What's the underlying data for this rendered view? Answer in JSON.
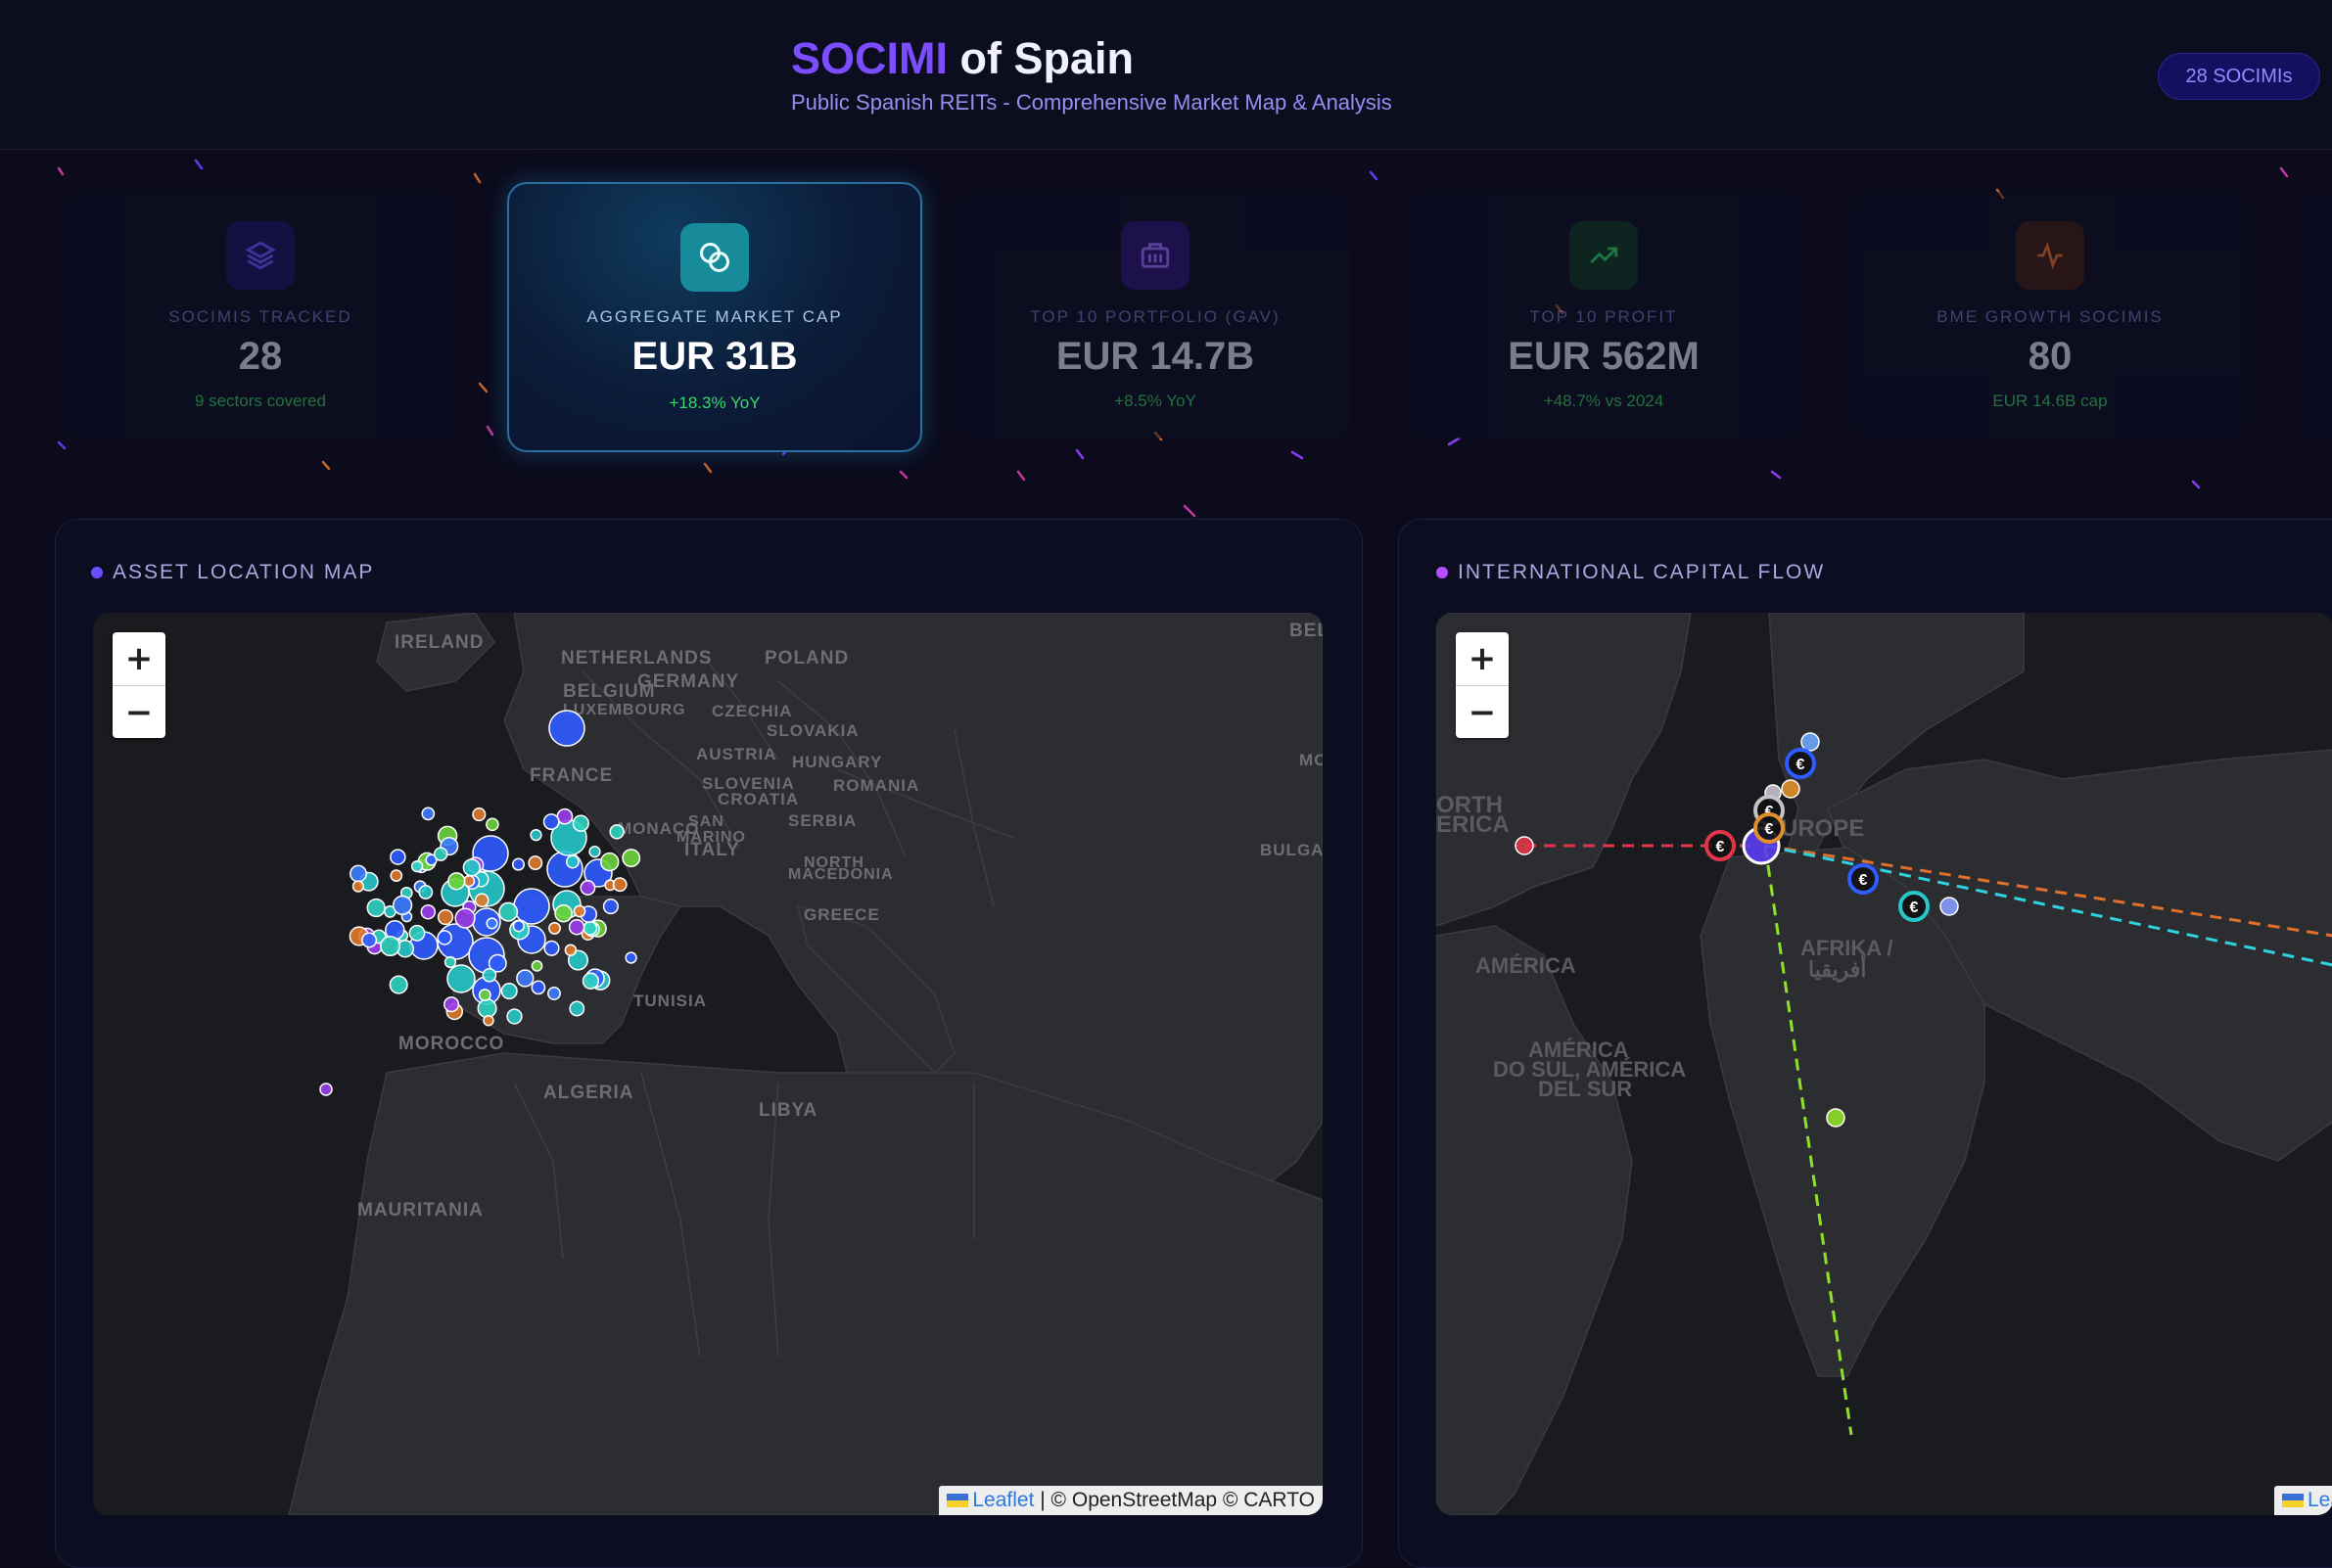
{
  "header": {
    "title_accent": "SOCIMI",
    "title_rest": "of Spain",
    "subtitle": "Public Spanish REITs - Comprehensive Market Map & Analysis",
    "badge": "28 SOCIMIs"
  },
  "kpis": [
    {
      "label": "SOCIMIS TRACKED",
      "value": "28",
      "delta": "9 sectors covered",
      "icon": "layers-icon",
      "color": "#5a3df0"
    },
    {
      "label": "AGGREGATE MARKET CAP",
      "value": "EUR 31B",
      "delta": "+18.3% YoY",
      "icon": "coins-icon",
      "color": "#18c3c9"
    },
    {
      "label": "TOP 10 PORTFOLIO (GAV)",
      "value": "EUR 14.7B",
      "delta": "+8.5% YoY",
      "icon": "building-icon",
      "color": "#8a3df0"
    },
    {
      "label": "TOP 10 PROFIT",
      "value": "EUR 562M",
      "delta": "+48.7% vs 2024",
      "icon": "trending-up-icon",
      "color": "#2fcf63"
    },
    {
      "label": "BME GROWTH SOCIMIS",
      "value": "80",
      "delta": "EUR 14.6B cap",
      "icon": "activity-icon",
      "color": "#e0702a"
    }
  ],
  "panels": {
    "asset_map": {
      "title": "ASSET LOCATION MAP",
      "dot_color": "#6a4dff",
      "labels": [
        "IRELAND",
        "NETHERLANDS",
        "GERMANY",
        "POLAND",
        "BEL",
        "BELGIUM",
        "LUXEMBOURG",
        "CZECHIA",
        "SLOVAKIA",
        "AUSTRIA",
        "HUNGARY",
        "MO",
        "FRANCE",
        "SLOVENIA",
        "CROATIA",
        "ROMANIA",
        "SAN",
        "MARINO",
        "MONACO",
        "SERBIA",
        "ITALY",
        "BULGAR",
        "NORTH",
        "MACEDONIA",
        "GREECE",
        "TUNISIA",
        "MOROCCO",
        "ALGERIA",
        "LIBYA",
        "MAURITANIA"
      ]
    },
    "capital_flow": {
      "title": "INTERNATIONAL CAPITAL FLOW",
      "dot_color": "#b64dff",
      "labels": [
        "ORTH",
        "ERICA",
        "UROPE",
        "AMÉRICA",
        "AFRIKA /",
        "أفريقيا",
        "AMÉRICA",
        "DO SUL, AMÉRICA",
        "DEL SUR"
      ],
      "marker_glyph": "€"
    }
  },
  "map_controls": {
    "zoom_in": "+",
    "zoom_out": "−"
  },
  "attribution": {
    "leaflet": "Leaflet",
    "rest": " | © OpenStreetMap © CARTO",
    "leaflet_cut": "Lea"
  }
}
